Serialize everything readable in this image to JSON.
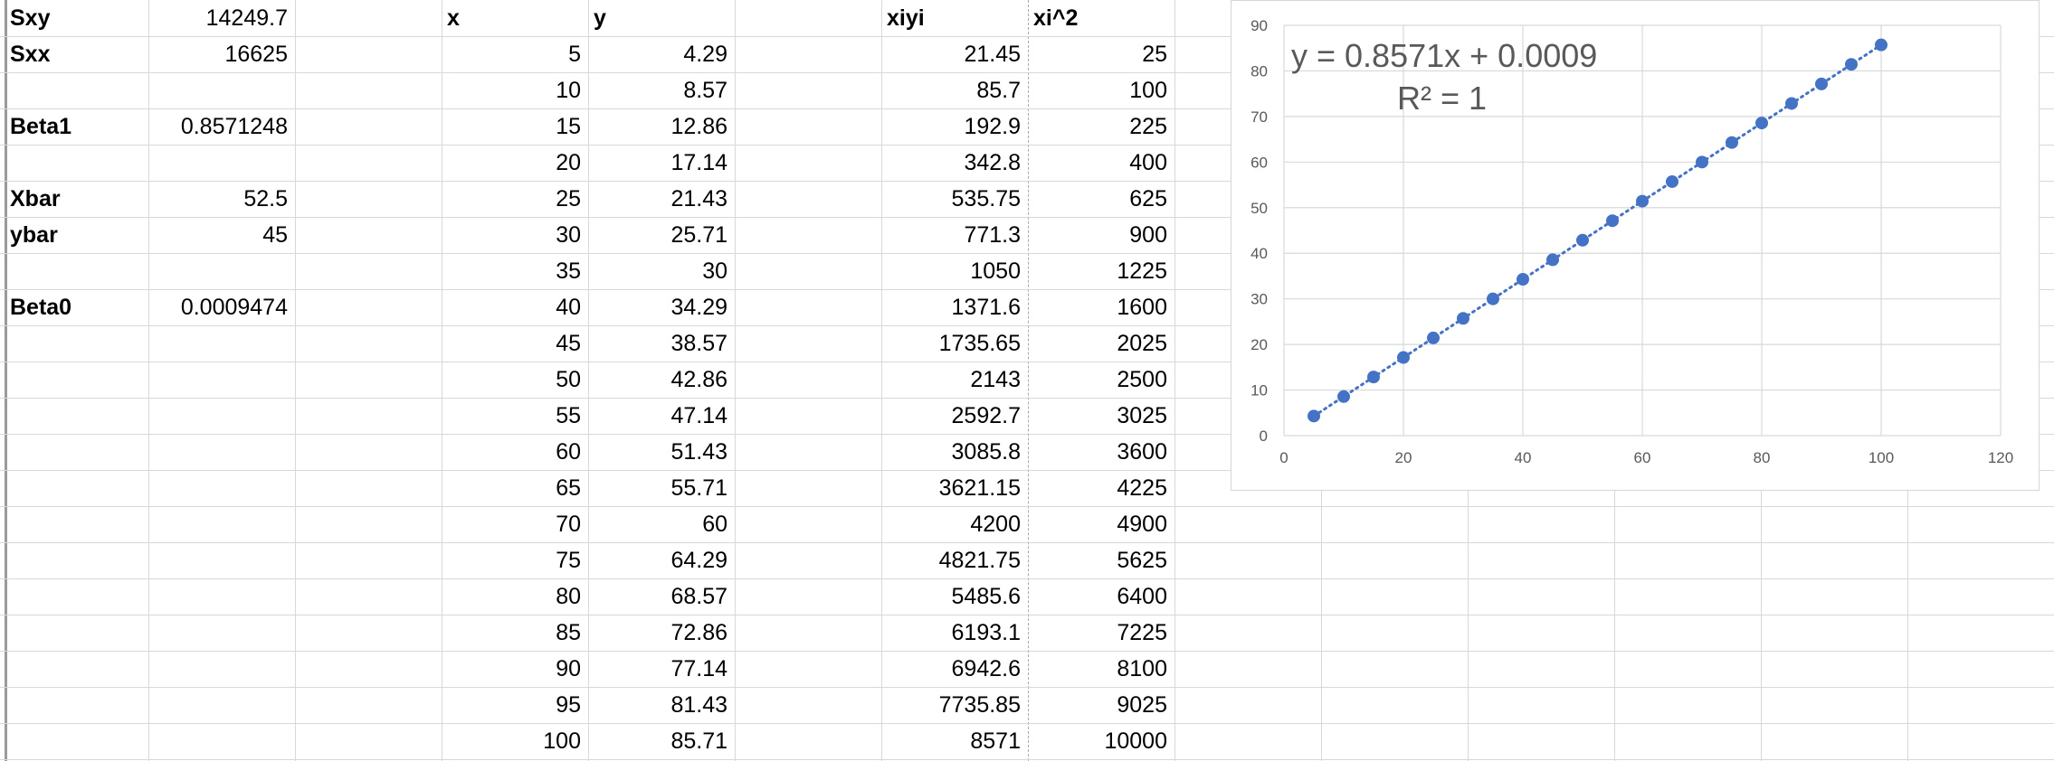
{
  "sheet": {
    "summary": [
      {
        "label": "Sxy",
        "value": "14249.7"
      },
      {
        "label": "Sxx",
        "value": "16625"
      },
      {
        "label": "",
        "value": ""
      },
      {
        "label": "Beta1",
        "value": "0.8571248"
      },
      {
        "label": "",
        "value": ""
      },
      {
        "label": "Xbar",
        "value": "52.5"
      },
      {
        "label": "ybar",
        "value": "45"
      },
      {
        "label": "",
        "value": ""
      },
      {
        "label": "Beta0",
        "value": "0.0009474"
      }
    ],
    "headers": {
      "x": "x",
      "y": "y",
      "xiyi": "xiyi",
      "xi2": "xi^2"
    },
    "rows": [
      {
        "x": "5",
        "y": "4.29",
        "xiyi": "21.45",
        "xi2": "25"
      },
      {
        "x": "10",
        "y": "8.57",
        "xiyi": "85.7",
        "xi2": "100"
      },
      {
        "x": "15",
        "y": "12.86",
        "xiyi": "192.9",
        "xi2": "225"
      },
      {
        "x": "20",
        "y": "17.14",
        "xiyi": "342.8",
        "xi2": "400"
      },
      {
        "x": "25",
        "y": "21.43",
        "xiyi": "535.75",
        "xi2": "625"
      },
      {
        "x": "30",
        "y": "25.71",
        "xiyi": "771.3",
        "xi2": "900"
      },
      {
        "x": "35",
        "y": "30",
        "xiyi": "1050",
        "xi2": "1225"
      },
      {
        "x": "40",
        "y": "34.29",
        "xiyi": "1371.6",
        "xi2": "1600"
      },
      {
        "x": "45",
        "y": "38.57",
        "xiyi": "1735.65",
        "xi2": "2025"
      },
      {
        "x": "50",
        "y": "42.86",
        "xiyi": "2143",
        "xi2": "2500"
      },
      {
        "x": "55",
        "y": "47.14",
        "xiyi": "2592.7",
        "xi2": "3025"
      },
      {
        "x": "60",
        "y": "51.43",
        "xiyi": "3085.8",
        "xi2": "3600"
      },
      {
        "x": "65",
        "y": "55.71",
        "xiyi": "3621.15",
        "xi2": "4225"
      },
      {
        "x": "70",
        "y": "60",
        "xiyi": "4200",
        "xi2": "4900"
      },
      {
        "x": "75",
        "y": "64.29",
        "xiyi": "4821.75",
        "xi2": "5625"
      },
      {
        "x": "80",
        "y": "68.57",
        "xiyi": "5485.6",
        "xi2": "6400"
      },
      {
        "x": "85",
        "y": "72.86",
        "xiyi": "6193.1",
        "xi2": "7225"
      },
      {
        "x": "90",
        "y": "77.14",
        "xiyi": "6942.6",
        "xi2": "8100"
      },
      {
        "x": "95",
        "y": "81.43",
        "xiyi": "7735.85",
        "xi2": "9025"
      },
      {
        "x": "100",
        "y": "85.71",
        "xiyi": "8571",
        "xi2": "10000"
      }
    ]
  },
  "chart_data": {
    "type": "scatter",
    "x": [
      5,
      10,
      15,
      20,
      25,
      30,
      35,
      40,
      45,
      50,
      55,
      60,
      65,
      70,
      75,
      80,
      85,
      90,
      95,
      100
    ],
    "series": [
      {
        "values": [
          4.29,
          8.57,
          12.86,
          17.14,
          21.43,
          25.71,
          30,
          34.29,
          38.57,
          42.86,
          47.14,
          51.43,
          55.71,
          60,
          64.29,
          68.57,
          72.86,
          77.14,
          81.43,
          85.71
        ]
      }
    ],
    "trendline": {
      "type": "linear",
      "slope": 0.8571,
      "intercept": 0.0009,
      "style": "dotted"
    },
    "equation_label": "y = 0.8571x + 0.0009",
    "r2_label": "R² = 1",
    "xlim": [
      0,
      120
    ],
    "ylim": [
      0,
      90
    ],
    "x_ticks": [
      0,
      20,
      40,
      60,
      80,
      100,
      120
    ],
    "y_ticks": [
      0,
      10,
      20,
      30,
      40,
      50,
      60,
      70,
      80,
      90
    ],
    "grid": true,
    "colors": {
      "points": "#4472c4",
      "trendline": "#4472c4",
      "grid": "#d9d9d9",
      "tick_text": "#595959"
    }
  }
}
